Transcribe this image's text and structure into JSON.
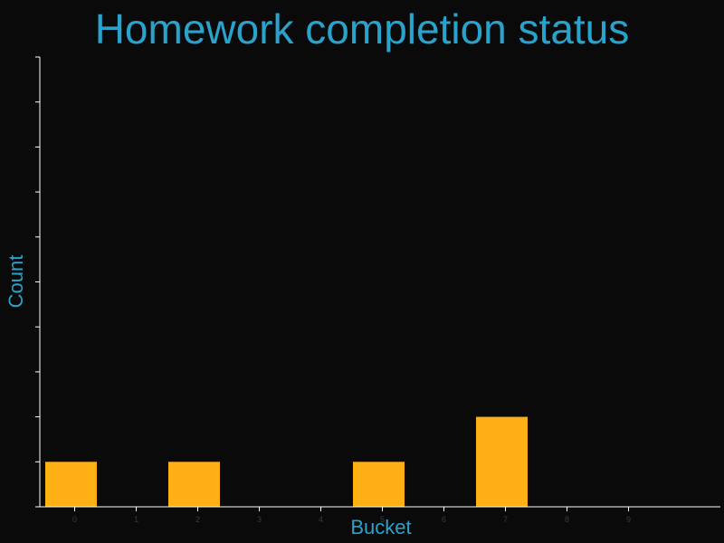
{
  "chart_data": {
    "type": "bar",
    "title": "Homework completion status",
    "xlabel": "Bucket",
    "ylabel": "Count",
    "categories": [
      "0",
      "1",
      "2",
      "3",
      "4",
      "5",
      "6",
      "7",
      "8",
      "9"
    ],
    "values": [
      1,
      0,
      1,
      0,
      0,
      1,
      0,
      2,
      0,
      0
    ],
    "ylim": [
      0,
      10
    ],
    "grid": false,
    "colors": {
      "background": "#0a0a0a",
      "bar": "#ffb014",
      "title": "#2aa3cc",
      "axis": "#ffffff",
      "tick_label": "#3a3a3a"
    }
  }
}
